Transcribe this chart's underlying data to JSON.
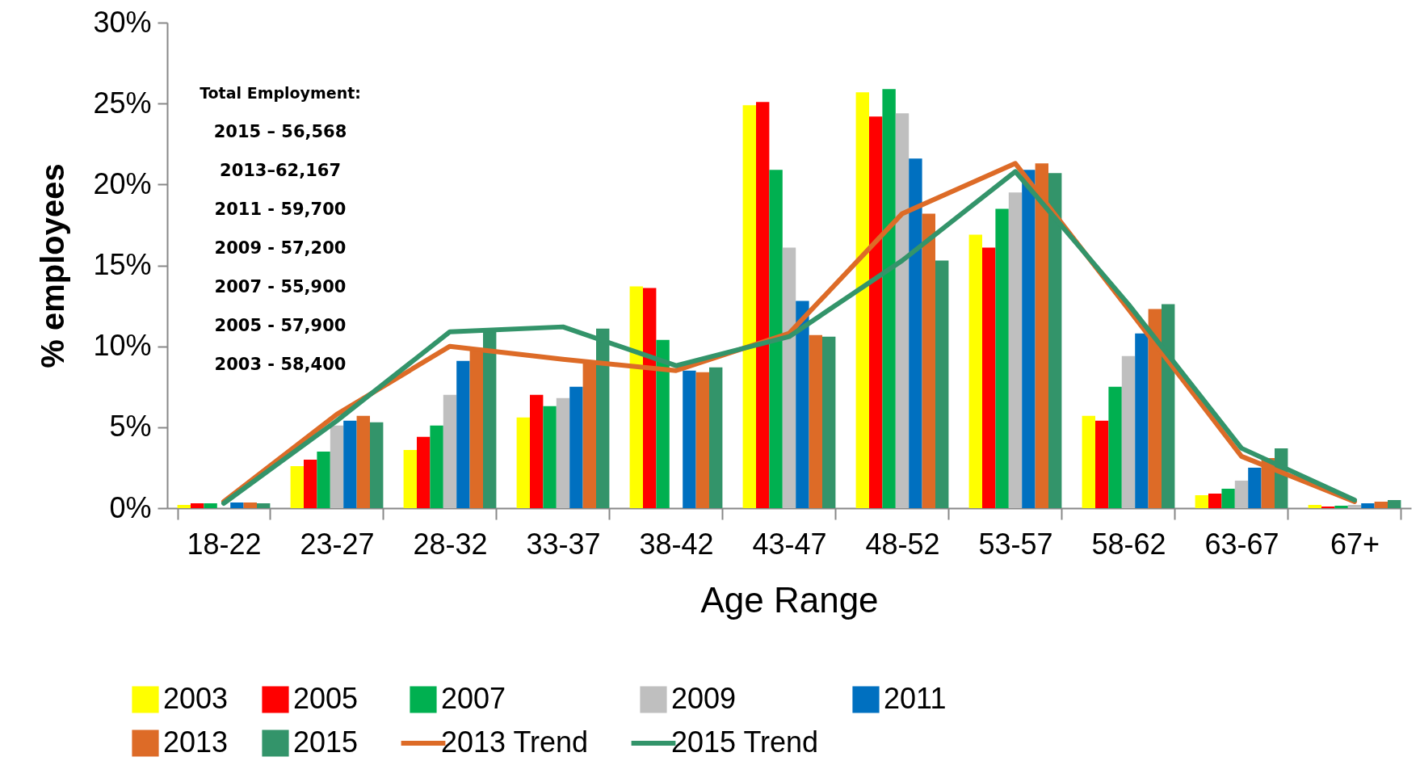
{
  "chart_data": {
    "type": "bar",
    "xlabel": "Age Range",
    "ylabel": "% employees",
    "legend": "bottom",
    "categories": [
      "18-22",
      "23-27",
      "28-32",
      "33-37",
      "38-42",
      "43-47",
      "48-52",
      "53-57",
      "58-62",
      "63-67",
      "67+"
    ],
    "ylim": [
      0,
      30
    ],
    "yticks": [
      {
        "value": 0,
        "label": "0%"
      },
      {
        "value": 5,
        "label": "5%"
      },
      {
        "value": 10,
        "label": "10%"
      },
      {
        "value": 15,
        "label": "15%"
      },
      {
        "value": 20,
        "label": "20%"
      },
      {
        "value": 25,
        "label": "25%"
      },
      {
        "value": 30,
        "label": "30%"
      }
    ],
    "annotations": [
      "Total Employment:",
      "2015 – 56,568",
      "2013–62,167",
      "2011 - 59,700",
      "2009 - 57,200",
      "2007 - 55,900",
      "2005 - 57,900",
      "2003 - 58,400"
    ],
    "series": [
      {
        "name": "2003",
        "color": "#ffff00",
        "values": [
          0.2,
          2.6,
          3.6,
          5.6,
          13.7,
          24.9,
          25.7,
          16.9,
          5.7,
          0.8,
          0.2
        ]
      },
      {
        "name": "2005",
        "color": "#ff0000",
        "values": [
          0.3,
          3.0,
          4.4,
          7.0,
          13.6,
          25.1,
          24.2,
          16.1,
          5.4,
          0.9,
          0.1
        ]
      },
      {
        "name": "2007",
        "color": "#00b050",
        "values": [
          0.3,
          3.5,
          5.1,
          6.3,
          10.4,
          20.9,
          25.9,
          18.5,
          7.5,
          1.2,
          0.15
        ]
      },
      {
        "name": "2009",
        "color": "#bfbfbf",
        "values": [
          null,
          5.1,
          7.0,
          6.8,
          null,
          16.1,
          24.4,
          19.5,
          9.4,
          1.7,
          0.2
        ]
      },
      {
        "name": "2011",
        "color": "#0070c0",
        "values": [
          0.35,
          5.4,
          9.1,
          7.5,
          8.5,
          12.8,
          21.6,
          20.9,
          10.8,
          2.5,
          0.3
        ]
      },
      {
        "name": "2013",
        "color": "#dd6b27",
        "values": [
          0.35,
          5.7,
          9.9,
          9.0,
          8.4,
          10.7,
          18.2,
          21.3,
          12.3,
          3.1,
          0.4
        ]
      },
      {
        "name": "2015",
        "color": "#33946a",
        "values": [
          0.3,
          5.3,
          10.9,
          11.1,
          8.7,
          10.6,
          15.3,
          20.7,
          12.6,
          3.7,
          0.5
        ]
      },
      {
        "name": "2013 Trend",
        "type": "line",
        "color": "#dd6b27",
        "values": [
          0.4,
          5.8,
          10.0,
          9.2,
          8.5,
          10.8,
          18.2,
          21.3,
          12.3,
          3.2,
          0.4
        ]
      },
      {
        "name": "2015 Trend",
        "type": "line",
        "color": "#33946a",
        "values": [
          0.3,
          5.4,
          10.9,
          11.2,
          8.8,
          10.6,
          15.3,
          20.8,
          12.6,
          3.7,
          0.5
        ]
      }
    ]
  }
}
